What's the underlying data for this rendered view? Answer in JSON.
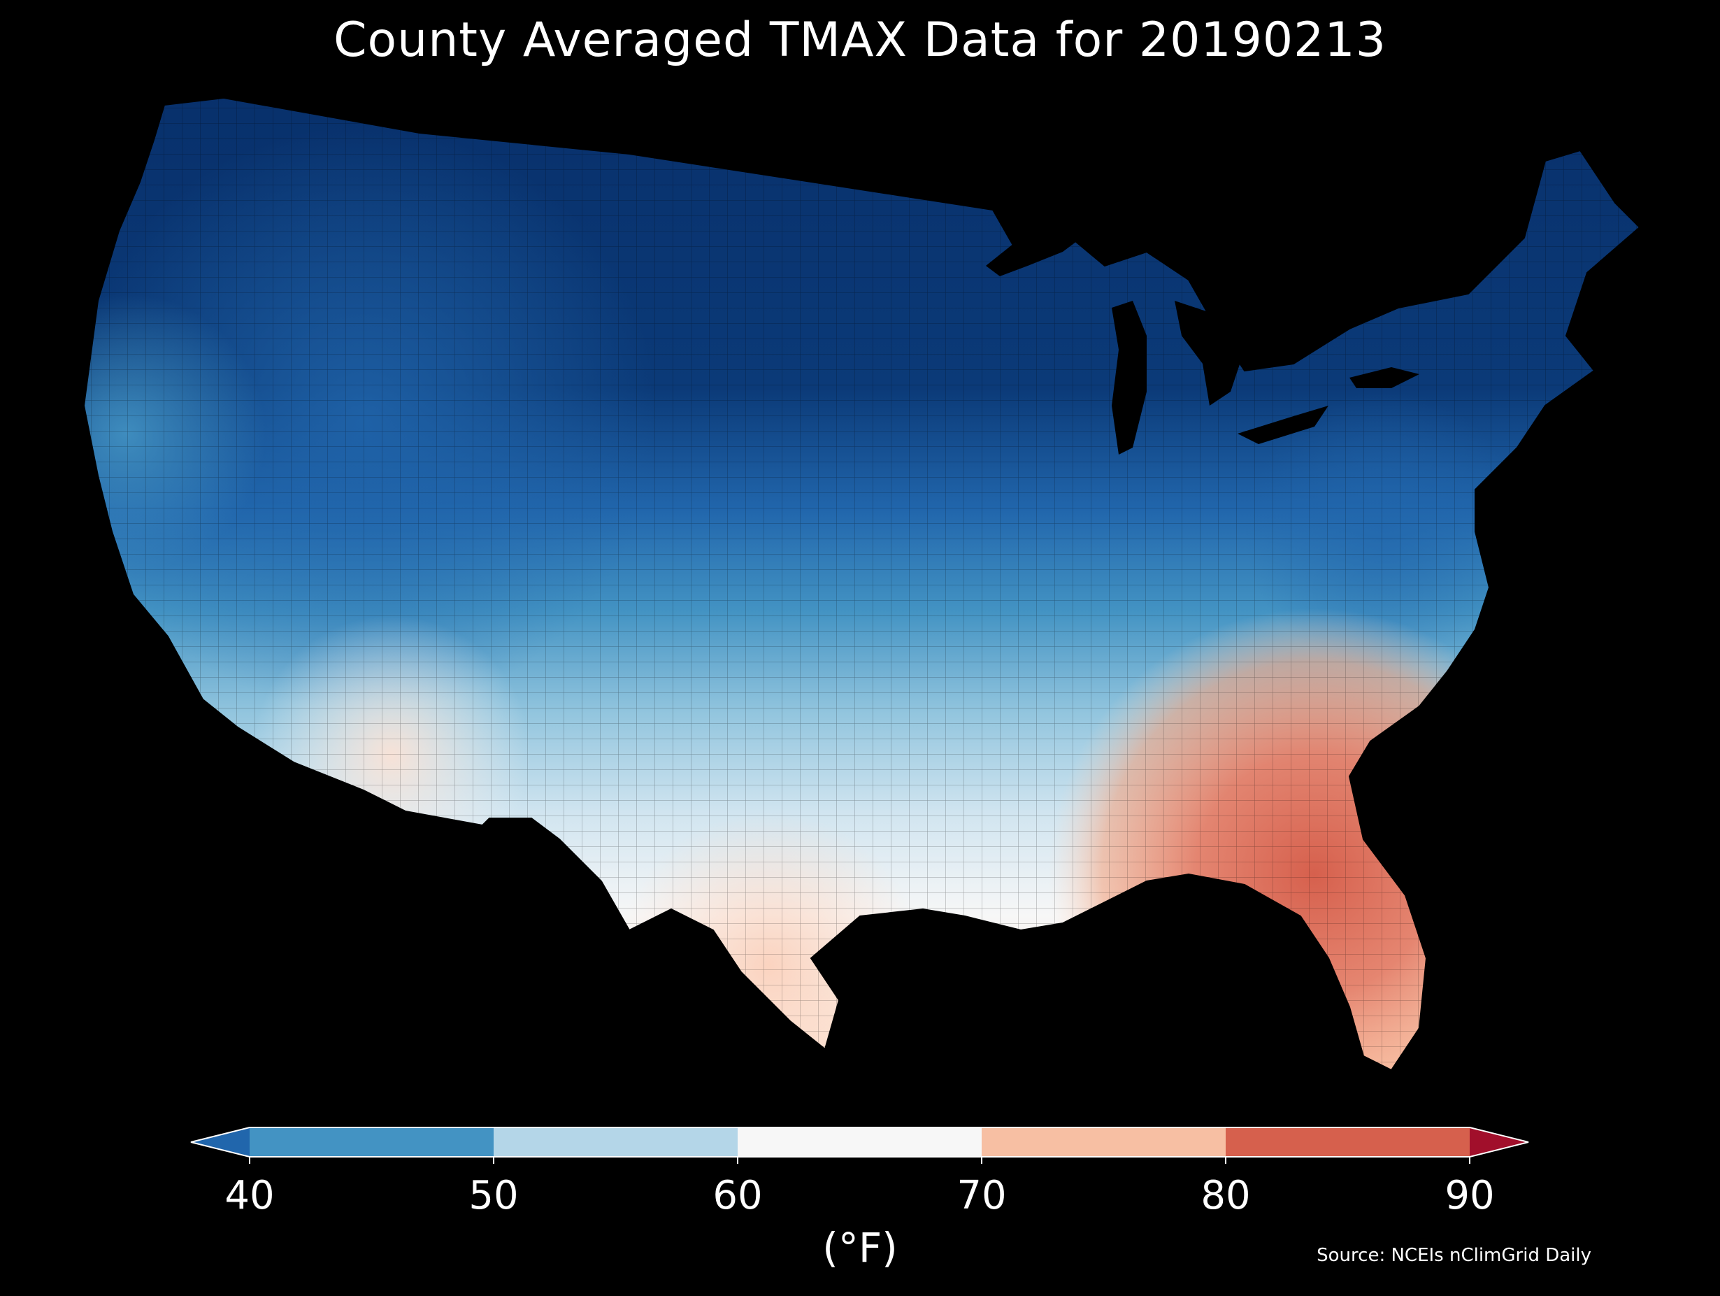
{
  "title": "County Averaged TMAX Data for 20190213",
  "map": {
    "region": "contiguous-united-states",
    "background": "#000000",
    "border_color": "#000000",
    "color_zones": [
      {
        "zone": "northern-plains-and-great-lakes",
        "color": "#08306b"
      },
      {
        "zone": "pacific-northwest-and-mountains",
        "color": "#2166ac"
      },
      {
        "zone": "central-plains-and-mid-atlantic",
        "color": "#4393c3"
      },
      {
        "zone": "southern-plains-and-ohio-valley",
        "color": "#92c5de"
      },
      {
        "zone": "southwest-and-gulf-coast",
        "color": "#f7f7f7"
      },
      {
        "zone": "texas-south-and-southeast",
        "color": "#fddbc7"
      },
      {
        "zone": "georgia-and-florida",
        "color": "#d6604d"
      }
    ]
  },
  "colorbar": {
    "ticks": [
      "40",
      "50",
      "60",
      "70",
      "80",
      "90"
    ],
    "unit_label": "(°F)",
    "bins": [
      {
        "from": null,
        "to": 40,
        "color": "#2166ac"
      },
      {
        "from": 40,
        "to": 50,
        "color": "#4393c3"
      },
      {
        "from": 50,
        "to": 60,
        "color": "#b4d6e8"
      },
      {
        "from": 60,
        "to": 70,
        "color": "#f7f7f7"
      },
      {
        "from": 70,
        "to": 80,
        "color": "#f7bfa3"
      },
      {
        "from": 80,
        "to": 90,
        "color": "#d6604d"
      },
      {
        "from": 90,
        "to": null,
        "color": "#a10f2b"
      }
    ]
  },
  "source": "Source: NCEIs nClimGrid Daily"
}
